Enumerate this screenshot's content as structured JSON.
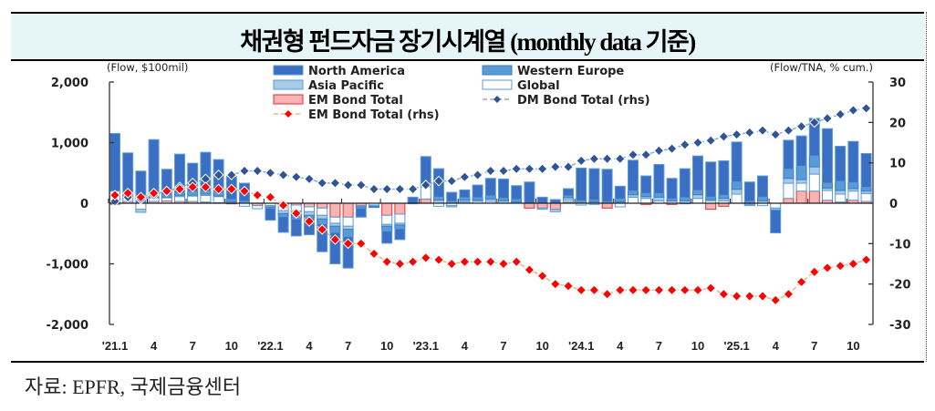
{
  "title": "채권형 펀드자금 장기시계열 (monthly data 기준)",
  "source": "자료: EPFR,  국제금융센터",
  "chart_data": {
    "type": "bar",
    "title": "채권형 펀드자금 장기시계열 (monthly data 기준)",
    "left_axis": {
      "unit_label": "(Flow, $100mil)",
      "ylim": [
        -2000,
        2000
      ],
      "ticks": [
        2000,
        1000,
        0,
        -1000,
        -2000
      ],
      "tick_labels": [
        "2,000",
        "1,000",
        "0",
        "-1,000",
        "-2,000"
      ]
    },
    "right_axis": {
      "unit_label": "(Flow/TNA, % cum.)",
      "ylim": [
        -30,
        30
      ],
      "ticks": [
        30,
        20,
        10,
        0,
        -10,
        -20,
        -30
      ],
      "tick_labels": [
        "30",
        "20",
        "10",
        "0",
        "-10",
        "-20",
        "-30"
      ]
    },
    "x_tick_labels": [
      "'21.1",
      "4",
      "7",
      "10",
      "'22.1",
      "4",
      "7",
      "10",
      "'23.1",
      "4",
      "7",
      "10",
      "'24.1",
      "4",
      "7",
      "10",
      "'25.1",
      "4",
      "7",
      "10"
    ],
    "x_tick_every": 3,
    "months": [
      "2021-01",
      "2021-02",
      "2021-03",
      "2021-04",
      "2021-05",
      "2021-06",
      "2021-07",
      "2021-08",
      "2021-09",
      "2021-10",
      "2021-11",
      "2021-12",
      "2022-01",
      "2022-02",
      "2022-03",
      "2022-04",
      "2022-05",
      "2022-06",
      "2022-07",
      "2022-08",
      "2022-09",
      "2022-10",
      "2022-11",
      "2022-12",
      "2023-01",
      "2023-02",
      "2023-03",
      "2023-04",
      "2023-05",
      "2023-06",
      "2023-07",
      "2023-08",
      "2023-09",
      "2023-10",
      "2023-11",
      "2023-12",
      "2024-01",
      "2024-02",
      "2024-03",
      "2024-04",
      "2024-05",
      "2024-06",
      "2024-07",
      "2024-08",
      "2024-09",
      "2024-10",
      "2024-11",
      "2024-12",
      "2025-01",
      "2025-02",
      "2025-03",
      "2025-04",
      "2025-05",
      "2025-06",
      "2025-07",
      "2025-08",
      "2025-09",
      "2025-10",
      "2025-11"
    ],
    "legend": [
      {
        "name": "North America",
        "type": "bar",
        "color": "#3a6fc4"
      },
      {
        "name": "Western Europe",
        "type": "bar",
        "color": "#5b9bd5"
      },
      {
        "name": "Asia Pacific",
        "type": "bar",
        "color": "#a9cbea"
      },
      {
        "name": "Global",
        "type": "bar",
        "color": "#ffffff"
      },
      {
        "name": "EM Bond Total",
        "type": "bar",
        "color": "#f8b4b4"
      },
      {
        "name": "DM Bond Total (rhs)",
        "type": "line",
        "color": "#2f5597"
      },
      {
        "name": "EM Bond Total (rhs)",
        "type": "line",
        "color": "#ff0000"
      }
    ],
    "legend_placement": "top-center",
    "series": [
      {
        "name": "EM Bond Total",
        "values": [
          20,
          30,
          10,
          30,
          40,
          30,
          30,
          20,
          10,
          -10,
          0,
          -40,
          0,
          -20,
          -30,
          -60,
          -80,
          -230,
          -230,
          -40,
          0,
          -200,
          -180,
          0,
          70,
          0,
          0,
          0,
          0,
          0,
          0,
          0,
          -80,
          -80,
          -100,
          20,
          0,
          0,
          -80,
          0,
          0,
          -20,
          0,
          -20,
          0,
          0,
          -100,
          -50,
          0,
          -20,
          0,
          0,
          80,
          200,
          200,
          50,
          20,
          50,
          30
        ]
      },
      {
        "name": "Global",
        "values": [
          180,
          50,
          -100,
          60,
          50,
          80,
          90,
          110,
          100,
          0,
          -50,
          -50,
          -40,
          -100,
          -100,
          -80,
          -120,
          -100,
          -150,
          0,
          -30,
          -150,
          -150,
          0,
          200,
          -50,
          -40,
          20,
          30,
          30,
          0,
          0,
          0,
          0,
          0,
          30,
          -30,
          -20,
          0,
          -60,
          100,
          80,
          40,
          30,
          -10,
          80,
          40,
          40,
          150,
          0,
          -40,
          -80,
          250,
          130,
          280,
          160,
          130,
          150,
          130
        ]
      },
      {
        "name": "Asia Pacific",
        "values": [
          -20,
          0,
          -50,
          0,
          0,
          20,
          0,
          20,
          10,
          20,
          0,
          0,
          -20,
          -50,
          -50,
          -60,
          -60,
          -50,
          -50,
          -20,
          -20,
          -30,
          -30,
          -10,
          20,
          50,
          -20,
          30,
          20,
          40,
          40,
          20,
          0,
          -20,
          -40,
          40,
          0,
          20,
          10,
          20,
          40,
          30,
          60,
          10,
          40,
          60,
          20,
          40,
          80,
          -20,
          40,
          -30,
          80,
          60,
          120,
          40,
          60,
          40,
          40
        ]
      },
      {
        "name": "Western Europe",
        "values": [
          0,
          50,
          0,
          30,
          50,
          40,
          70,
          50,
          60,
          40,
          30,
          0,
          -20,
          -50,
          -80,
          -40,
          -80,
          -100,
          -120,
          -20,
          -20,
          -80,
          -60,
          0,
          30,
          50,
          30,
          40,
          40,
          50,
          40,
          40,
          0,
          0,
          0,
          30,
          40,
          30,
          10,
          50,
          60,
          50,
          60,
          30,
          50,
          70,
          40,
          50,
          120,
          30,
          60,
          0,
          150,
          220,
          180,
          80,
          150,
          100,
          60
        ]
      },
      {
        "name": "North America",
        "values": [
          950,
          700,
          520,
          930,
          420,
          640,
          470,
          640,
          540,
          380,
          300,
          0,
          -200,
          -260,
          -280,
          -280,
          -460,
          -520,
          -520,
          -150,
          0,
          -200,
          -180,
          100,
          450,
          470,
          150,
          130,
          210,
          290,
          320,
          230,
          350,
          100,
          60,
          120,
          540,
          520,
          540,
          210,
          510,
          290,
          480,
          340,
          480,
          570,
          580,
          570,
          660,
          320,
          350,
          -380,
          480,
          500,
          620,
          900,
          580,
          680,
          560
        ]
      },
      {
        "name": "DM Bond Total (rhs)",
        "values": [
          0.5,
          1.5,
          1.0,
          2.0,
          3.0,
          4.0,
          5.0,
          6.0,
          7.0,
          7.0,
          8.0,
          8.0,
          7.5,
          7.0,
          6.5,
          6.0,
          5.0,
          5.0,
          4.5,
          4.5,
          3.5,
          3.5,
          3.5,
          3.5,
          4.5,
          5.5,
          5.5,
          6.5,
          7.0,
          8.0,
          8.0,
          8.5,
          8.5,
          8.5,
          9.0,
          9.0,
          10.5,
          11.0,
          11.0,
          11.0,
          12.0,
          12.0,
          13.0,
          13.5,
          14.5,
          15.0,
          15.5,
          16.5,
          17.0,
          17.5,
          18.0,
          17.0,
          18.0,
          19.0,
          20.0,
          21.0,
          22.0,
          23.0,
          23.5
        ]
      },
      {
        "name": "EM Bond Total (rhs)",
        "values": [
          2.0,
          2.5,
          1.5,
          2.5,
          3.0,
          3.5,
          4.0,
          4.0,
          3.5,
          3.5,
          3.0,
          2.0,
          1.5,
          -0.5,
          -2.5,
          -4.5,
          -6.5,
          -9.0,
          -10.0,
          -10.0,
          -12.5,
          -14.5,
          -15.0,
          -14.5,
          -13.5,
          -14.0,
          -15.0,
          -14.5,
          -14.5,
          -14.5,
          -15.0,
          -14.5,
          -16.5,
          -18.0,
          -20.0,
          -20.5,
          -21.5,
          -21.5,
          -22.5,
          -21.5,
          -21.5,
          -21.5,
          -21.5,
          -21.5,
          -21.5,
          -21.5,
          -21.0,
          -22.5,
          -23.0,
          -23.0,
          -23.0,
          -24.0,
          -22.5,
          -19.5,
          -17.0,
          -16.0,
          -15.5,
          -15.0,
          -14.0
        ]
      }
    ]
  }
}
